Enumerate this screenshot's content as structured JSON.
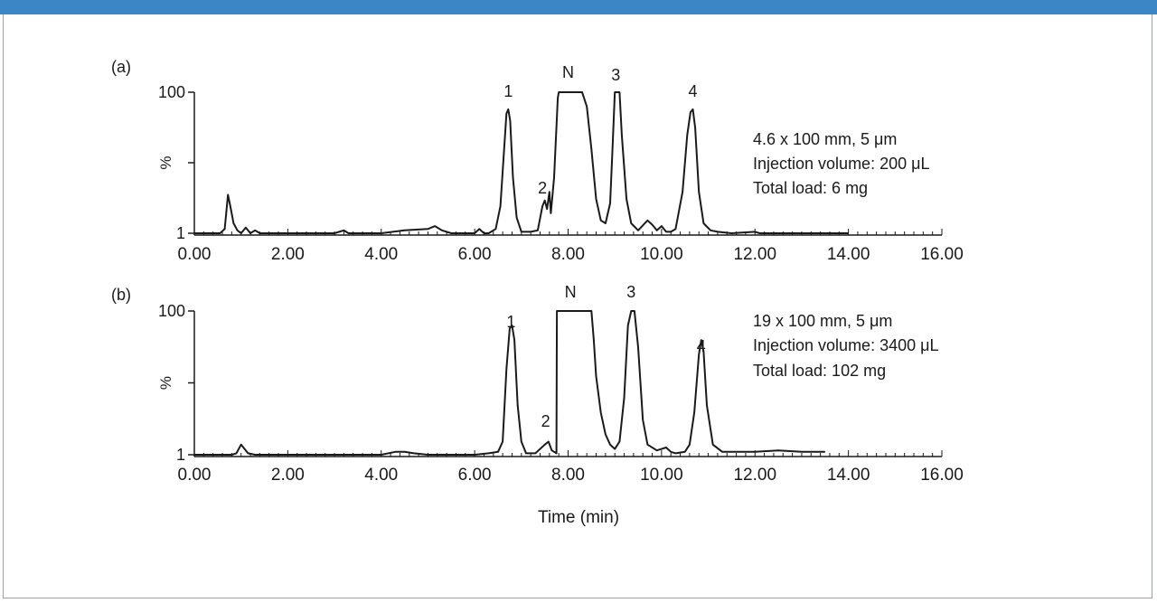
{
  "colors": {
    "top_bar": "#3d86c6",
    "frame_border": "#9aa0a6",
    "trace": "#1a1a1a"
  },
  "chart_data": [
    {
      "type": "line",
      "panel_label": "(a)",
      "xlabel": "",
      "ylabel": "%",
      "xlim": [
        0,
        16
      ],
      "ylim": [
        1,
        100
      ],
      "x_ticks": [
        "0.00",
        "2.00",
        "4.00",
        "6.00",
        "8.00",
        "10.00",
        "12.00",
        "14.00",
        "16.00"
      ],
      "y_ticks": [
        "100",
        "%",
        "1"
      ],
      "annotations": [
        "4.6 x 100 mm, 5 μm",
        "Injection volume: 200 μL",
        "Total load: 6 mg"
      ],
      "peak_labels": [
        {
          "label": "1",
          "x": 6.72
        },
        {
          "label": "2",
          "x": 7.45
        },
        {
          "label": "N",
          "x": 8.0
        },
        {
          "label": "3",
          "x": 9.02
        },
        {
          "label": "4",
          "x": 10.67
        }
      ],
      "series": [
        {
          "x": [
            0.0,
            0.55,
            0.65,
            0.72,
            0.77,
            0.84,
            0.92,
            1.0,
            1.1,
            1.2,
            1.3,
            1.4,
            1.6,
            2.0,
            3.0,
            3.2,
            3.3,
            4.0,
            4.5,
            5.0,
            5.15,
            5.3,
            5.5,
            6.0,
            6.1,
            6.2,
            6.3,
            6.45,
            6.55,
            6.62,
            6.68,
            6.72,
            6.76,
            6.82,
            6.9,
            7.0,
            7.2,
            7.35,
            7.45,
            7.5,
            7.55,
            7.6,
            7.63,
            7.7,
            7.78,
            7.8,
            8.0,
            8.3,
            8.4,
            8.5,
            8.6,
            8.7,
            8.8,
            8.9,
            8.95,
            9.0,
            9.07,
            9.1,
            9.15,
            9.25,
            9.35,
            9.5,
            9.7,
            9.8,
            9.9,
            10.0,
            10.1,
            10.2,
            10.3,
            10.45,
            10.55,
            10.62,
            10.67,
            10.72,
            10.8,
            10.9,
            11.05,
            11.2,
            11.5,
            12.0,
            12.1,
            12.5,
            13.0,
            13.5,
            14.0
          ],
          "y": [
            1,
            1,
            4,
            28,
            20,
            8,
            3,
            1,
            5,
            1,
            3,
            1,
            1,
            1,
            1,
            3,
            1,
            1,
            3,
            4,
            6,
            3,
            1,
            1,
            4,
            1,
            1,
            4,
            20,
            55,
            85,
            88,
            80,
            40,
            12,
            2,
            2,
            3,
            20,
            24,
            18,
            30,
            15,
            40,
            96,
            100,
            100,
            100,
            90,
            60,
            25,
            10,
            8,
            22,
            60,
            100,
            100,
            100,
            70,
            25,
            8,
            3,
            10,
            7,
            3,
            6,
            2,
            2,
            4,
            30,
            70,
            86,
            88,
            75,
            30,
            8,
            3,
            2,
            1,
            2,
            1,
            1,
            1,
            1,
            1
          ]
        }
      ]
    },
    {
      "type": "line",
      "panel_label": "(b)",
      "xlabel": "Time (min)",
      "ylabel": "%",
      "xlim": [
        0,
        16
      ],
      "ylim": [
        1,
        100
      ],
      "x_ticks": [
        "0.00",
        "2.00",
        "4.00",
        "6.00",
        "8.00",
        "10.00",
        "12.00",
        "14.00",
        "16.00"
      ],
      "y_ticks": [
        "100",
        "%",
        "1"
      ],
      "annotations": [
        "19 x 100 mm, 5 μm",
        "Injection volume: 3400 μL",
        "Total load: 102 mg"
      ],
      "peak_labels": [
        {
          "label": "1",
          "x": 6.78
        },
        {
          "label": "2",
          "x": 7.52
        },
        {
          "label": "N",
          "x": 8.05
        },
        {
          "label": "3",
          "x": 9.35
        },
        {
          "label": "4",
          "x": 10.85
        }
      ],
      "series": [
        {
          "x": [
            0.0,
            0.8,
            0.9,
            1.0,
            1.05,
            1.15,
            1.3,
            2.0,
            3.0,
            4.0,
            4.3,
            4.5,
            4.7,
            5.0,
            6.0,
            6.3,
            6.5,
            6.6,
            6.68,
            6.75,
            6.8,
            6.85,
            6.92,
            7.0,
            7.1,
            7.3,
            7.5,
            7.58,
            7.65,
            7.7,
            7.75,
            7.76,
            8.0,
            8.5,
            8.55,
            8.6,
            8.7,
            8.8,
            8.9,
            9.0,
            9.1,
            9.2,
            9.28,
            9.35,
            9.42,
            9.5,
            9.6,
            9.7,
            9.9,
            10.0,
            10.1,
            10.2,
            10.3,
            10.5,
            10.6,
            10.7,
            10.8,
            10.85,
            10.9,
            10.97,
            11.1,
            11.3,
            11.5,
            12.0,
            12.5,
            13.0,
            13.5
          ],
          "y": [
            1,
            1,
            2,
            8,
            6,
            2,
            1,
            1,
            1,
            1,
            3,
            3,
            2,
            1,
            1,
            2,
            3,
            10,
            60,
            88,
            90,
            80,
            35,
            10,
            2,
            2,
            8,
            10,
            4,
            3,
            2,
            100,
            100,
            100,
            80,
            55,
            30,
            15,
            8,
            5,
            10,
            40,
            90,
            100,
            100,
            75,
            25,
            8,
            4,
            5,
            6,
            3,
            2,
            3,
            8,
            30,
            70,
            80,
            72,
            35,
            8,
            3,
            3,
            3,
            4,
            3,
            3
          ]
        }
      ]
    }
  ]
}
